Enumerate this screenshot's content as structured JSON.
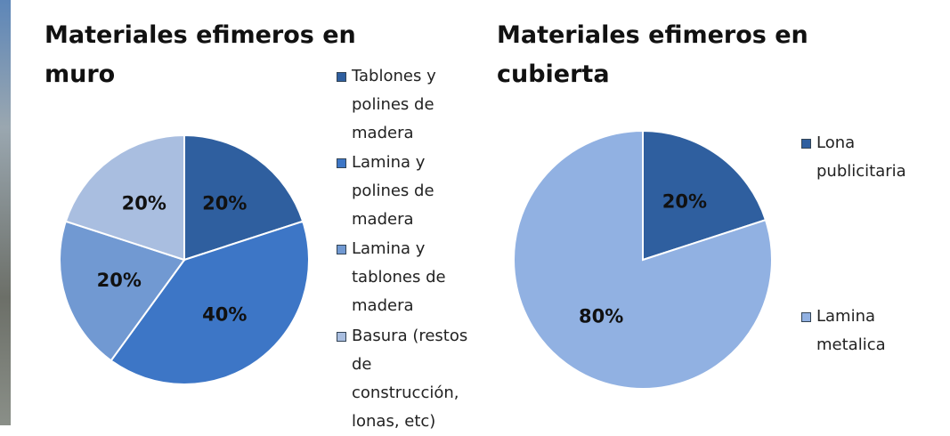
{
  "chart_data": [
    {
      "type": "pie",
      "title": "Materiales efimeros en muro",
      "categories": [
        "Tablones y polines de madera",
        "Lamina y polines de madera",
        "Lamina y tablones de madera",
        "Basura (restos de construcción, lonas, etc)"
      ],
      "values": [
        20,
        40,
        20,
        20
      ],
      "value_labels": [
        "20%",
        "40%",
        "20%",
        "20%"
      ],
      "colors": [
        "#2f5f9f",
        "#3d76c6",
        "#7199d2",
        "#a9bee0"
      ]
    },
    {
      "type": "pie",
      "title": "Materiales efimeros en cubierta",
      "categories": [
        "Lona publicitaria",
        "Lamina metalica"
      ],
      "values": [
        20,
        80
      ],
      "value_labels": [
        "20%",
        "80%"
      ],
      "colors": [
        "#2f5f9f",
        "#91b1e2"
      ]
    }
  ]
}
